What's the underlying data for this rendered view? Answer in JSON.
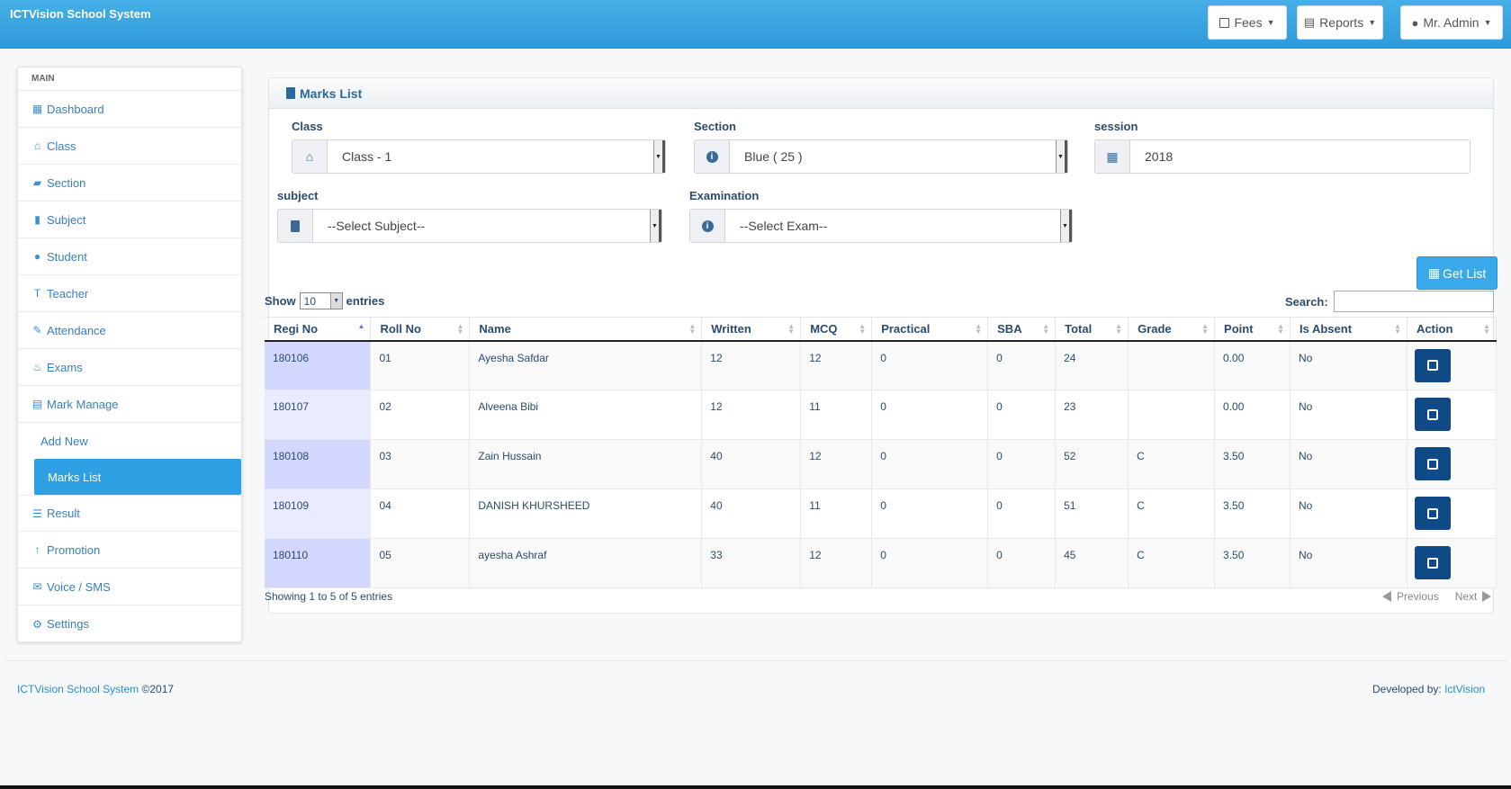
{
  "app": {
    "brand": "ICTVision School System"
  },
  "navbar": {
    "fees": "Fees",
    "reports": "Reports",
    "user": "Mr. Admin"
  },
  "sidebar": {
    "section": "MAIN",
    "items": [
      {
        "label": "Dashboard",
        "icon": "dashboard-icon"
      },
      {
        "label": "Class",
        "icon": "home-icon"
      },
      {
        "label": "Section",
        "icon": "folder-icon"
      },
      {
        "label": "Subject",
        "icon": "book-icon"
      },
      {
        "label": "Student",
        "icon": "user-icon"
      },
      {
        "label": "Teacher",
        "icon": "text-height-icon"
      },
      {
        "label": "Attendance",
        "icon": "pencil-icon"
      },
      {
        "label": "Exams",
        "icon": "fire-icon"
      },
      {
        "label": "Mark Manage",
        "icon": "list-alt-icon"
      }
    ],
    "sub_items": [
      "Add New",
      "Marks List"
    ],
    "items_after": [
      {
        "label": "Result",
        "icon": "list-icon"
      },
      {
        "label": "Promotion",
        "icon": "arrow-up-icon"
      },
      {
        "label": "Voice / SMS",
        "icon": "envelope-icon"
      },
      {
        "label": "Settings",
        "icon": "cog-icon"
      }
    ]
  },
  "panel": {
    "title": "Marks List",
    "class_label": "Class",
    "class_value": "Class - 1",
    "section_label": "Section",
    "section_value": "Blue ( 25 )",
    "session_label": "session",
    "session_value": "2018",
    "subject_label": "subject",
    "subject_value": "--Select Subject--",
    "exam_label": "Examination",
    "exam_value": "--Select Exam--",
    "get_list": "Get List"
  },
  "table": {
    "show_label": "Show",
    "show_value": "10",
    "entries_label": "entries",
    "search_label": "Search:",
    "headers": [
      "Regi No",
      "Roll No",
      "Name",
      "Written",
      "MCQ",
      "Practical",
      "SBA",
      "Total",
      "Grade",
      "Point",
      "Is Absent",
      "Action"
    ],
    "rows": [
      [
        "180106",
        "01",
        "Ayesha Safdar",
        "12",
        "12",
        "0",
        "0",
        "24",
        "",
        "0.00",
        "No"
      ],
      [
        "180107",
        "02",
        "Alveena Bibi",
        "12",
        "11",
        "0",
        "0",
        "23",
        "",
        "0.00",
        "No"
      ],
      [
        "180108",
        "03",
        "Zain Hussain",
        "40",
        "12",
        "0",
        "0",
        "52",
        "C",
        "3.50",
        "No"
      ],
      [
        "180109",
        "04",
        "DANISH KHURSHEED",
        "40",
        "11",
        "0",
        "0",
        "51",
        "C",
        "3.50",
        "No"
      ],
      [
        "180110",
        "05",
        "ayesha Ashraf",
        "33",
        "12",
        "0",
        "0",
        "45",
        "C",
        "3.50",
        "No"
      ]
    ],
    "info": "Showing 1 to 5 of 5 entries",
    "previous": "Previous",
    "next": "Next"
  },
  "footer": {
    "left_link": "ICTVision School System",
    "left_suffix": " ©2017",
    "right_prefix": "Developed by: ",
    "right_link": "IctVision"
  }
}
